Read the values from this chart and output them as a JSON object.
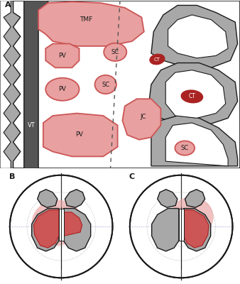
{
  "bg_color": "#ffffff",
  "gray_fill": "#a8a8a8",
  "gray_light": "#c8c8c8",
  "gray_dark": "#555555",
  "red_light": "#e8a0a0",
  "red_mid": "#cc5555",
  "red_dark": "#aa2222",
  "black": "#1a1a1a",
  "white": "#ffffff",
  "panel_a_label": "A",
  "panel_b_label": "B",
  "panel_c_label": "C"
}
